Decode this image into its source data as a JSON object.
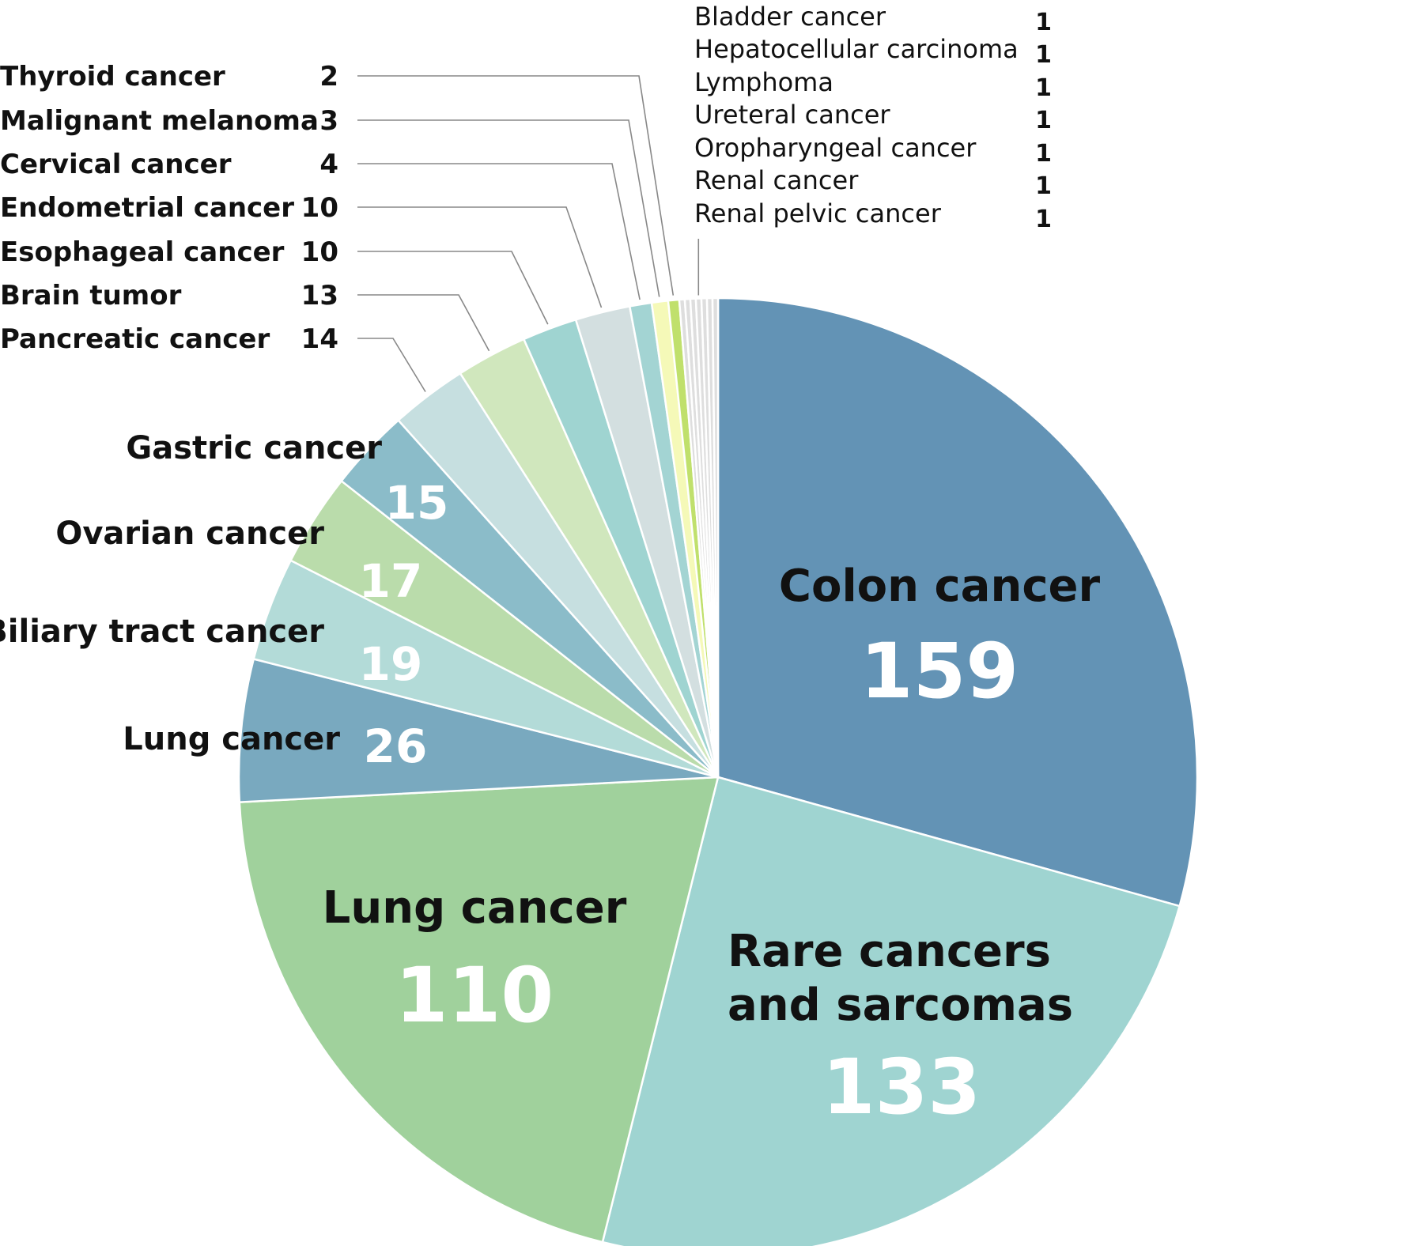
{
  "chart_data": {
    "type": "pie",
    "start_angle_deg": -90,
    "direction": "clockwise",
    "slices": [
      {
        "label": "Colon cancer",
        "value": 159,
        "color": "#6393b5"
      },
      {
        "label": "Rare cancers and sarcomas",
        "value": 133,
        "color": "#9fd4d1"
      },
      {
        "label": "Lung cancer",
        "value": 110,
        "color": "#a0d19c"
      },
      {
        "label": "Lung cancer",
        "value": 26,
        "color": "#79a9bf"
      },
      {
        "label": "Biliary tract cancer",
        "value": 19,
        "color": "#b3dbd8"
      },
      {
        "label": "Ovarian cancer",
        "value": 17,
        "color": "#badcab"
      },
      {
        "label": "Gastric cancer",
        "value": 15,
        "color": "#8bbcc9"
      },
      {
        "label": "Pancreatic cancer",
        "value": 14,
        "color": "#c6dfe0"
      },
      {
        "label": "Brain tumor",
        "value": 13,
        "color": "#d0e7bd"
      },
      {
        "label": "Esophageal cancer",
        "value": 10,
        "color": "#9fd4d1"
      },
      {
        "label": "Endometrial cancer",
        "value": 10,
        "color": "#d3dfe0"
      },
      {
        "label": "Cervical cancer",
        "value": 4,
        "color": "#a3d4d3"
      },
      {
        "label": "Malignant melanoma",
        "value": 3,
        "color": "#f5f9b8"
      },
      {
        "label": "Thyroid cancer",
        "value": 2,
        "color": "#c0e06c"
      },
      {
        "label": "Bladder cancer",
        "value": 1,
        "color": "#dedede"
      },
      {
        "label": "Hepatocellular carcinoma",
        "value": 1,
        "color": "#dedede"
      },
      {
        "label": "Lymphoma",
        "value": 1,
        "color": "#dedede"
      },
      {
        "label": "Ureteral cancer",
        "value": 1,
        "color": "#dedede"
      },
      {
        "label": "Oropharyngeal cancer",
        "value": 1,
        "color": "#dedede"
      },
      {
        "label": "Renal cancer",
        "value": 1,
        "color": "#dedede"
      },
      {
        "label": "Renal pelvic cancer",
        "value": 1,
        "color": "#dedede"
      }
    ]
  },
  "big_labels": [
    {
      "lines": [
        "Colon cancer"
      ],
      "value": "159"
    },
    {
      "lines": [
        "Rare cancers",
        "and sarcomas"
      ],
      "value": "133"
    },
    {
      "lines": [
        "Lung cancer"
      ],
      "value": "110"
    }
  ],
  "mid_labels": [
    {
      "label": "Lung cancer",
      "value": "26"
    },
    {
      "label": "Biliary tract cancer",
      "value": "19"
    },
    {
      "label": "Ovarian cancer",
      "value": "17"
    },
    {
      "label": "Gastric cancer",
      "value": "15"
    }
  ],
  "left_callouts": [
    {
      "label": "Thyroid cancer",
      "value": "2",
      "slice": 13
    },
    {
      "label": "Malignant melanoma",
      "value": "3",
      "slice": 12
    },
    {
      "label": "Cervical cancer",
      "value": "4",
      "slice": 11
    },
    {
      "label": "Endometrial cancer",
      "value": "10",
      "slice": 10
    },
    {
      "label": "Esophageal cancer",
      "value": "10",
      "slice": 9
    },
    {
      "label": "Brain tumor",
      "value": "13",
      "slice": 8
    },
    {
      "label": "Pancreatic cancer",
      "value": "14",
      "slice": 7
    }
  ],
  "top_list": [
    {
      "label": "Bladder cancer",
      "value": "1"
    },
    {
      "label": "Hepatocellular carcinoma",
      "value": "1"
    },
    {
      "label": "Lymphoma",
      "value": "1"
    },
    {
      "label": "Ureteral cancer",
      "value": "1"
    },
    {
      "label": "Oropharyngeal cancer",
      "value": "1"
    },
    {
      "label": "Renal cancer",
      "value": "1"
    },
    {
      "label": "Renal pelvic cancer",
      "value": "1"
    }
  ]
}
